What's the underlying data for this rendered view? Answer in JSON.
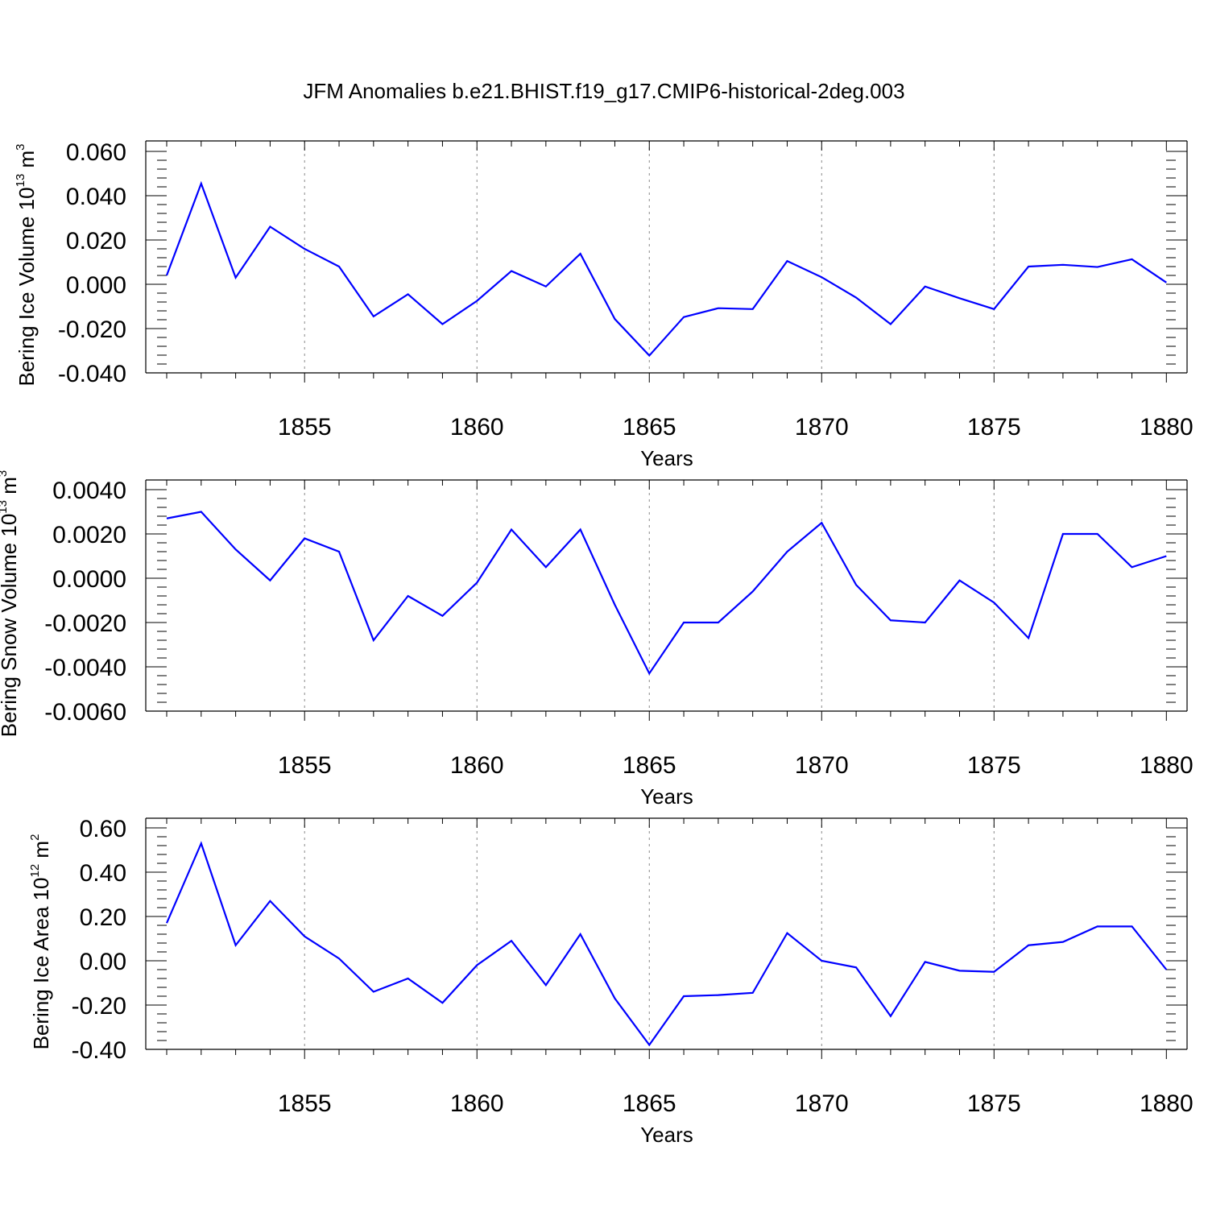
{
  "title": "JFM Anomalies b.e21.BHIST.f19_g17.CMIP6-historical-2deg.003",
  "colors": {
    "series": "#0000ff",
    "axis": "#000000",
    "grid": "#888888"
  },
  "chart_data": [
    {
      "type": "line",
      "ylabel": {
        "text": "Bering Ice Volume 10",
        "sup": "13",
        "unit": "m",
        "unit_sup": "3"
      },
      "xlabel": "Years",
      "xlim": [
        1851,
        1880.6
      ],
      "ylim": [
        -0.04,
        0.06
      ],
      "xticks": [
        1855,
        1860,
        1865,
        1870,
        1875,
        1880
      ],
      "yticks": [
        "0.060",
        "0.040",
        "0.020",
        "0.000",
        "-0.020",
        "-0.040"
      ],
      "yticks_values": [
        0.06,
        0.04,
        0.02,
        0.0,
        -0.02,
        -0.04
      ],
      "grid_x": true,
      "x": [
        1851,
        1852,
        1853,
        1854,
        1855,
        1856,
        1857,
        1858,
        1859,
        1860,
        1861,
        1862,
        1863,
        1864,
        1865,
        1866,
        1867,
        1868,
        1869,
        1870,
        1871,
        1872,
        1873,
        1874,
        1875,
        1876,
        1877,
        1878,
        1879,
        1880
      ],
      "series": [
        {
          "values": [
            0.004,
            0.0455,
            0.003,
            0.026,
            0.016,
            0.008,
            -0.0145,
            -0.0045,
            -0.018,
            -0.0075,
            0.006,
            -0.001,
            0.0138,
            -0.0157,
            -0.0322,
            -0.0148,
            -0.0108,
            -0.0112,
            0.0105,
            0.0032,
            -0.006,
            -0.018,
            -0.001,
            -0.0063,
            -0.0112,
            0.008,
            0.0088,
            0.0078,
            0.0113,
            0.0008
          ]
        }
      ]
    },
    {
      "type": "line",
      "ylabel": {
        "text": "Bering Snow Volume 10",
        "sup": "13",
        "unit": "m",
        "unit_sup": "3"
      },
      "xlabel": "Years",
      "xlim": [
        1851,
        1880.6
      ],
      "ylim": [
        -0.006,
        0.004
      ],
      "xticks": [
        1855,
        1860,
        1865,
        1870,
        1875,
        1880
      ],
      "yticks": [
        "0.0040",
        "0.0020",
        "0.0000",
        "-0.0020",
        "-0.0040",
        "-0.0060"
      ],
      "yticks_values": [
        0.004,
        0.002,
        0.0,
        -0.002,
        -0.004,
        -0.006
      ],
      "grid_x": true,
      "x": [
        1851,
        1852,
        1853,
        1854,
        1855,
        1856,
        1857,
        1858,
        1859,
        1860,
        1861,
        1862,
        1863,
        1864,
        1865,
        1866,
        1867,
        1868,
        1869,
        1870,
        1871,
        1872,
        1873,
        1874,
        1875,
        1876,
        1877,
        1878,
        1879,
        1880
      ],
      "series": [
        {
          "values": [
            0.0027,
            0.003,
            0.0013,
            -0.0001,
            0.0018,
            0.0012,
            -0.0028,
            -0.0008,
            -0.0017,
            -0.0002,
            0.0022,
            0.0005,
            0.0022,
            -0.0012,
            -0.0043,
            -0.002,
            -0.002,
            -0.0006,
            0.0012,
            0.0025,
            -0.0003,
            -0.0019,
            -0.002,
            -0.0001,
            -0.0011,
            -0.0027,
            0.002,
            0.002,
            0.0005,
            0.001
          ]
        }
      ]
    },
    {
      "type": "line",
      "ylabel": {
        "text": "Bering Ice Area 10",
        "sup": "12",
        "unit": "m",
        "unit_sup": "2"
      },
      "xlabel": "Years",
      "xlim": [
        1851,
        1880.6
      ],
      "ylim": [
        -0.4,
        0.6
      ],
      "xticks": [
        1855,
        1860,
        1865,
        1870,
        1875,
        1880
      ],
      "yticks": [
        "0.60",
        "0.40",
        "0.20",
        "0.00",
        "-0.20",
        "-0.40"
      ],
      "yticks_values": [
        0.6,
        0.4,
        0.2,
        0.0,
        -0.2,
        -0.4
      ],
      "grid_x": true,
      "x": [
        1851,
        1852,
        1853,
        1854,
        1855,
        1856,
        1857,
        1858,
        1859,
        1860,
        1861,
        1862,
        1863,
        1864,
        1865,
        1866,
        1867,
        1868,
        1869,
        1870,
        1871,
        1872,
        1873,
        1874,
        1875,
        1876,
        1877,
        1878,
        1879,
        1880
      ],
      "series": [
        {
          "values": [
            0.17,
            0.53,
            0.07,
            0.27,
            0.11,
            0.01,
            -0.14,
            -0.08,
            -0.19,
            -0.02,
            0.09,
            -0.11,
            0.12,
            -0.17,
            -0.38,
            -0.16,
            -0.155,
            -0.145,
            0.125,
            0.0,
            -0.03,
            -0.25,
            -0.005,
            -0.045,
            -0.05,
            0.07,
            0.085,
            0.155,
            0.155,
            -0.04
          ]
        }
      ]
    }
  ]
}
